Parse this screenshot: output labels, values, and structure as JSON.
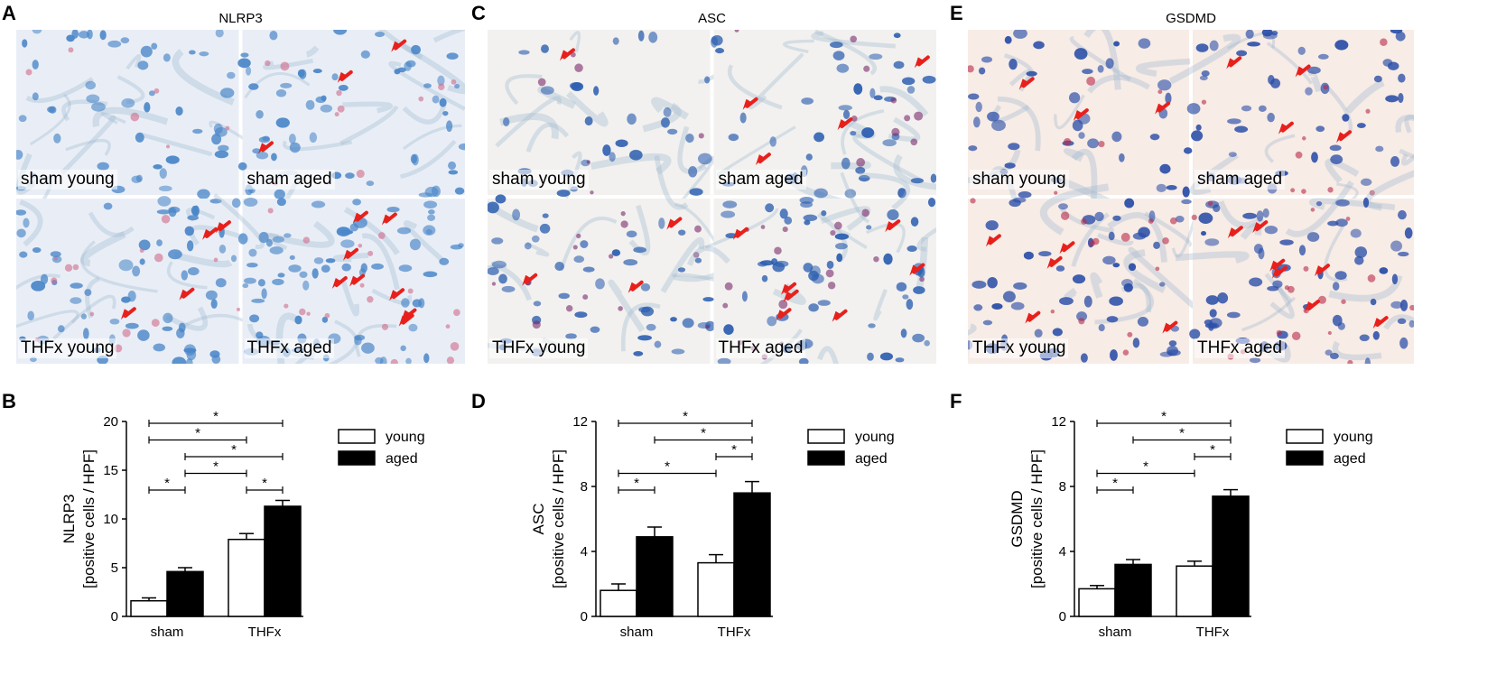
{
  "panels": [
    {
      "letter": "A",
      "title": "NLRP3",
      "stain": "#d06a8a",
      "nucleus": "#4a86c8",
      "bg": "#e9eef6",
      "nucleusDense": 0.55,
      "tiles": [
        "sham young",
        "sham aged",
        "THFx young",
        "THFx aged"
      ],
      "arrows": [
        0,
        3,
        4,
        8
      ]
    },
    {
      "letter": "C",
      "title": "ASC",
      "stain": "#7a2a6a",
      "nucleus": "#2d5fb0",
      "bg": "#f2f1ef",
      "nucleusDense": 0.35,
      "tiles": [
        "sham young",
        "sham aged",
        "THFx young",
        "THFx aged"
      ],
      "arrows": [
        1,
        4,
        3,
        7
      ]
    },
    {
      "letter": "E",
      "title": "GSDMD",
      "stain": "#b82a4a",
      "nucleus": "#2c4fa8",
      "bg": "#f7ece6",
      "nucleusDense": 0.45,
      "tiles": [
        "sham young",
        "sham aged",
        "THFx young",
        "THFx aged"
      ],
      "arrows": [
        3,
        4,
        5,
        7
      ]
    }
  ],
  "legend": {
    "young": "young",
    "aged": "aged"
  },
  "colors": {
    "young": "#ffffff",
    "aged": "#000000",
    "arrow": "#e8201c"
  },
  "chart_data": [
    {
      "letter": "B",
      "type": "bar",
      "categories": [
        "sham",
        "THFx"
      ],
      "series": [
        {
          "name": "young",
          "values": [
            1.6,
            7.9
          ],
          "errors": [
            0.3,
            0.6
          ]
        },
        {
          "name": "aged",
          "values": [
            4.6,
            11.3
          ],
          "errors": [
            0.4,
            0.6
          ]
        }
      ],
      "ylabel_line1": "NLRP3",
      "ylabel_line2": "[positive cells / HPF]",
      "ylim": [
        0,
        20
      ],
      "yticks": [
        0,
        5,
        10,
        15,
        20
      ],
      "significance": [
        {
          "from": "sham-young",
          "to": "THFx-aged",
          "level": 1,
          "label": "*"
        },
        {
          "from": "sham-young",
          "to": "THFx-young",
          "level": 2,
          "label": "*"
        },
        {
          "from": "sham-aged",
          "to": "THFx-aged",
          "level": 3,
          "label": "*"
        },
        {
          "from": "sham-aged",
          "to": "THFx-young",
          "level": 4,
          "label": "*"
        },
        {
          "from": "sham-young",
          "to": "sham-aged",
          "level": 5,
          "label": "*"
        },
        {
          "from": "THFx-young",
          "to": "THFx-aged",
          "level": 5,
          "label": "*"
        }
      ]
    },
    {
      "letter": "D",
      "type": "bar",
      "categories": [
        "sham",
        "THFx"
      ],
      "series": [
        {
          "name": "young",
          "values": [
            1.6,
            3.3
          ],
          "errors": [
            0.4,
            0.5
          ]
        },
        {
          "name": "aged",
          "values": [
            4.9,
            7.6
          ],
          "errors": [
            0.6,
            0.7
          ]
        }
      ],
      "ylabel_line1": "ASC",
      "ylabel_line2": "[positive cells / HPF]",
      "ylim": [
        0,
        12
      ],
      "yticks": [
        0,
        4,
        8,
        12
      ],
      "significance": [
        {
          "from": "sham-young",
          "to": "THFx-aged",
          "level": 1,
          "label": "*"
        },
        {
          "from": "sham-aged",
          "to": "THFx-aged",
          "level": 2,
          "label": "*"
        },
        {
          "from": "THFx-young",
          "to": "THFx-aged",
          "level": 3,
          "label": "*"
        },
        {
          "from": "sham-young",
          "to": "THFx-young",
          "level": 4,
          "label": "*"
        },
        {
          "from": "sham-young",
          "to": "sham-aged",
          "level": 5,
          "label": "*"
        }
      ]
    },
    {
      "letter": "F",
      "type": "bar",
      "categories": [
        "sham",
        "THFx"
      ],
      "series": [
        {
          "name": "young",
          "values": [
            1.7,
            3.1
          ],
          "errors": [
            0.2,
            0.3
          ]
        },
        {
          "name": "aged",
          "values": [
            3.2,
            7.4
          ],
          "errors": [
            0.3,
            0.4
          ]
        }
      ],
      "ylabel_line1": "GSDMD",
      "ylabel_line2": "[positive cells / HPF]",
      "ylim": [
        0,
        12
      ],
      "yticks": [
        0,
        4,
        8,
        12
      ],
      "significance": [
        {
          "from": "sham-young",
          "to": "THFx-aged",
          "level": 1,
          "label": "*"
        },
        {
          "from": "sham-aged",
          "to": "THFx-aged",
          "level": 2,
          "label": "*"
        },
        {
          "from": "THFx-young",
          "to": "THFx-aged",
          "level": 3,
          "label": "*"
        },
        {
          "from": "sham-young",
          "to": "THFx-young",
          "level": 4,
          "label": "*"
        },
        {
          "from": "sham-young",
          "to": "sham-aged",
          "level": 5,
          "label": "*"
        }
      ]
    }
  ]
}
